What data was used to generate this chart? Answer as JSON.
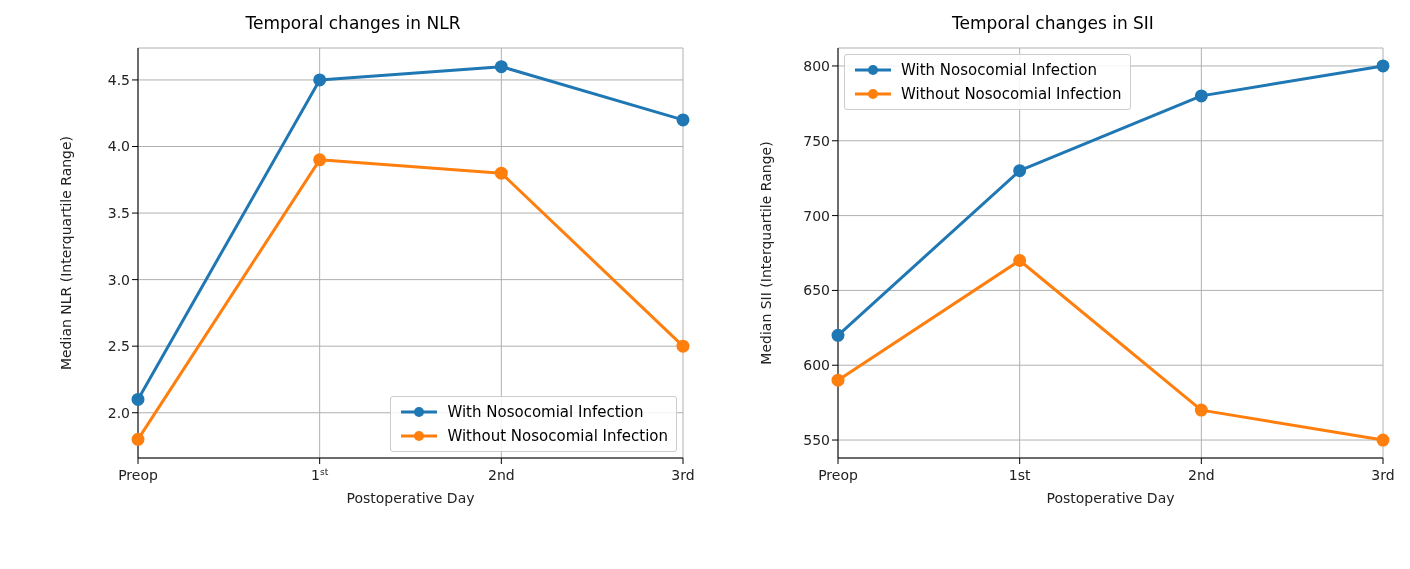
{
  "chart_data": [
    {
      "type": "line",
      "title": "Temporal changes in NLR",
      "xlabel": "Postoperative Day",
      "ylabel": "Median NLR (Interquartile Range)",
      "categories": [
        "Preop",
        "1$^{st}$",
        "2nd",
        "3rd"
      ],
      "series": [
        {
          "name": "With Nosocomial Infection",
          "color": "#1f77b4",
          "values": [
            2.1,
            4.5,
            4.6,
            4.2
          ]
        },
        {
          "name": "Without Nosocomial Infection",
          "color": "#ff7f0e",
          "values": [
            1.8,
            3.9,
            3.8,
            2.5
          ]
        }
      ],
      "ylim": [
        1.66,
        4.74
      ],
      "yticks": [
        {
          "value": 2,
          "label": "2.0"
        },
        {
          "value": 2.5,
          "label": "2.5"
        },
        {
          "value": 3,
          "label": "3.0"
        },
        {
          "value": 3.5,
          "label": "3.5"
        },
        {
          "value": 4,
          "label": "4.0"
        },
        {
          "value": 4.5,
          "label": "4.5"
        }
      ],
      "grid": true,
      "legend": "bottom right",
      "marker": "circle",
      "line_style": "solid"
    },
    {
      "type": "line",
      "title": "Temporal changes in SII",
      "xlabel": "Postoperative Day",
      "ylabel": "Median SII (Interquartile Range)",
      "categories": [
        "Preop",
        "1st",
        "2nd",
        "3rd"
      ],
      "series": [
        {
          "name": "With Nosocomial Infection",
          "color": "#1f77b4",
          "values": [
            620,
            730,
            780,
            800
          ]
        },
        {
          "name": "Without Nosocomial Infection",
          "color": "#ff7f0e",
          "values": [
            590,
            670,
            570,
            550
          ]
        }
      ],
      "ylim": [
        538,
        812
      ],
      "yticks": [
        550,
        600,
        650,
        700,
        750,
        800
      ],
      "grid": true,
      "legend": "top left",
      "marker": "circle",
      "line_style": "solid"
    }
  ]
}
